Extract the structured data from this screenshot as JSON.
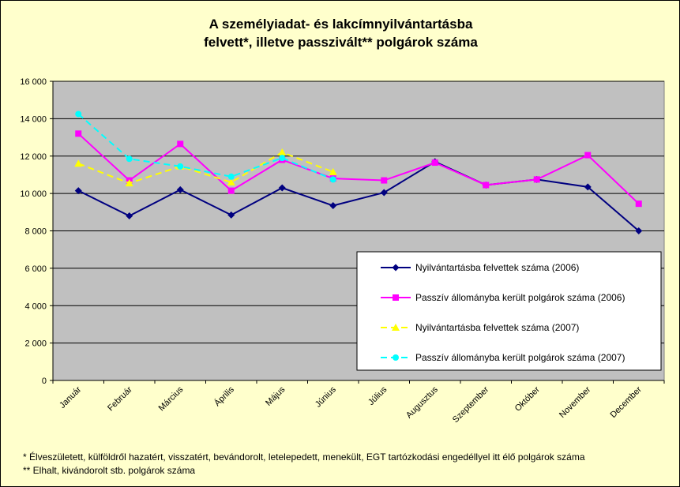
{
  "title_line1": "A személyiadat- és lakcímnyilvántartásba",
  "title_line2": "felvett*, illetve passzivált** polgárok száma",
  "footnote1": "* Élveszületett, külföldről hazatért, visszatért, bevándorolt, letelepedett, menekült, EGT tartózkodási engedéllyel itt élő  polgárok száma",
  "footnote2": "** Elhalt, kivándorolt stb. polgárok száma",
  "chart_data": {
    "type": "line",
    "title": "A személyiadat- és lakcímnyilvántartásba felvett*, illetve passzivált** polgárok száma",
    "xlabel": "",
    "ylabel": "",
    "categories": [
      "Január",
      "Február",
      "Március",
      "Április",
      "Május",
      "Június",
      "Július",
      "Augusztus",
      "Szeptember",
      "Október",
      "November",
      "December"
    ],
    "ylim": [
      0,
      16000
    ],
    "yticks": [
      0,
      2000,
      4000,
      6000,
      8000,
      10000,
      12000,
      14000,
      16000
    ],
    "ytick_labels": [
      "0",
      "2 000",
      "4 000",
      "6 000",
      "8 000",
      "10 000",
      "12 000",
      "14 000",
      "16 000"
    ],
    "grid": true,
    "legend_position": "bottom-right",
    "plot_background": "#c0c0c0",
    "page_background": "#ffffcc",
    "series": [
      {
        "name": "Nyilvántartásba felvettek száma (2006)",
        "color": "#000080",
        "marker": "diamond",
        "dashed": false,
        "values": [
          10150,
          8800,
          10200,
          8850,
          10300,
          9350,
          10050,
          11700,
          10450,
          10750,
          10350,
          8000
        ]
      },
      {
        "name": "Passzív állományba került polgárok száma (2006)",
        "color": "#ff00ff",
        "marker": "square",
        "dashed": false,
        "values": [
          13200,
          10700,
          12650,
          10150,
          11800,
          10800,
          10700,
          11650,
          10450,
          10750,
          12050,
          9450
        ]
      },
      {
        "name": "Nyilvántartásba felvettek száma (2007)",
        "color": "#ffff00",
        "marker": "triangle",
        "dashed": true,
        "values": [
          11600,
          10550,
          11450,
          10600,
          12200,
          11150,
          null,
          null,
          null,
          null,
          null,
          null
        ]
      },
      {
        "name": "Passzív állományba került polgárok száma (2007)",
        "color": "#00ffff",
        "marker": "circle",
        "dashed": true,
        "values": [
          14250,
          11850,
          11450,
          10900,
          11900,
          10750,
          null,
          null,
          null,
          null,
          null,
          null
        ]
      }
    ]
  }
}
